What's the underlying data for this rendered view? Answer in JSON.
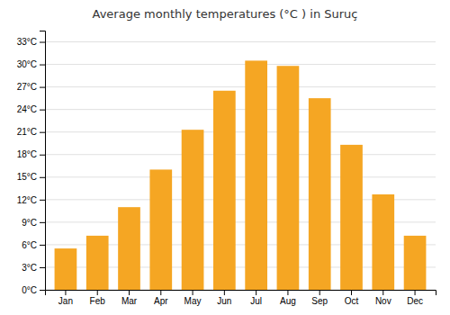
{
  "chart_data": {
    "type": "bar",
    "title": "Average monthly temperatures (°C ) in Suruç",
    "categories": [
      "Jan",
      "Feb",
      "Mar",
      "Apr",
      "May",
      "Jun",
      "Jul",
      "Aug",
      "Sep",
      "Oct",
      "Nov",
      "Dec"
    ],
    "values": [
      5.5,
      7.2,
      11.0,
      16.0,
      21.3,
      26.5,
      30.5,
      29.8,
      25.5,
      19.3,
      12.7,
      7.2
    ],
    "color": "#F5A623",
    "ylim": [
      0,
      34.5
    ],
    "yticks": [
      {
        "value": 0,
        "label": "0°C"
      },
      {
        "value": 3,
        "label": "3°C"
      },
      {
        "value": 6,
        "label": "6°C"
      },
      {
        "value": 9,
        "label": "9°C"
      },
      {
        "value": 12,
        "label": "12°C"
      },
      {
        "value": 15,
        "label": "15°C"
      },
      {
        "value": 18,
        "label": "18°C"
      },
      {
        "value": 21,
        "label": "21°C"
      },
      {
        "value": 24,
        "label": "24°C"
      },
      {
        "value": 27,
        "label": "27°C"
      },
      {
        "value": 30,
        "label": "30°C"
      },
      {
        "value": 33,
        "label": "33°C"
      }
    ],
    "grid": true
  }
}
